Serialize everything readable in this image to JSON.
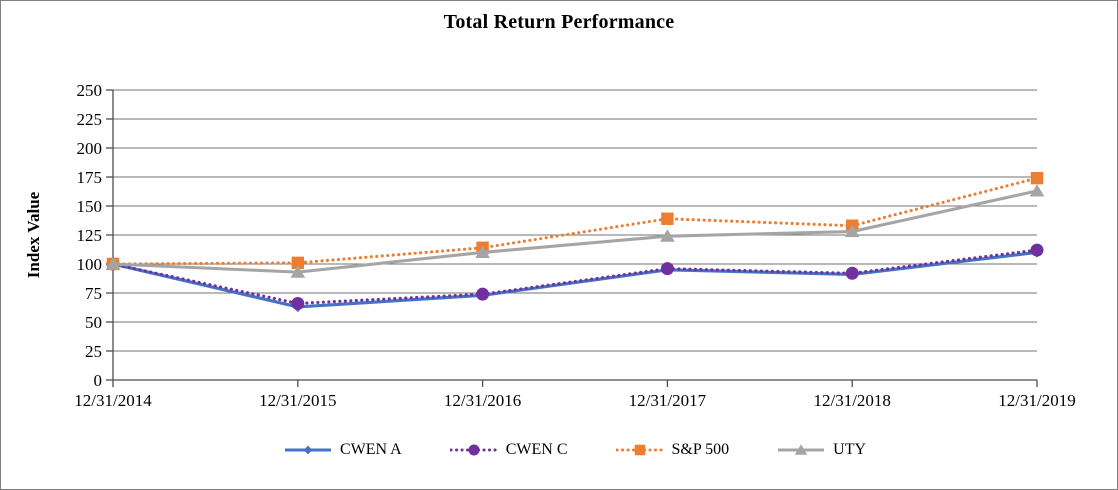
{
  "chart_data": {
    "type": "line",
    "title": "Total Return Performance",
    "ylabel": "Index Value",
    "xlabel": "",
    "categories": [
      "12/31/2014",
      "12/31/2015",
      "12/31/2016",
      "12/31/2017",
      "12/31/2018",
      "12/31/2019"
    ],
    "series": [
      {
        "name": "CWEN A",
        "color": "#4472C4",
        "line_style": "solid",
        "marker": "diamond",
        "values": [
          100,
          63,
          73,
          95,
          91,
          110
        ]
      },
      {
        "name": "CWEN C",
        "color": "#7030A0",
        "line_style": "dotted",
        "marker": "circle",
        "values": [
          100,
          66,
          74,
          96,
          92,
          112
        ]
      },
      {
        "name": "S&P 500",
        "color": "#ED7D31",
        "line_style": "dotted",
        "marker": "square",
        "values": [
          100,
          101,
          114,
          139,
          133,
          174
        ]
      },
      {
        "name": "UTY",
        "color": "#A5A5A5",
        "line_style": "solid",
        "marker": "triangle",
        "values": [
          100,
          93,
          110,
          124,
          128,
          163
        ]
      }
    ],
    "ylim": [
      0,
      250
    ],
    "yticks": [
      0,
      25,
      50,
      75,
      100,
      125,
      150,
      175,
      200,
      225,
      250
    ],
    "grid": "horizontal",
    "legend_position": "bottom",
    "colors": {
      "gridline": "#737373",
      "axis": "#4d4d4d",
      "text": "#000000"
    }
  }
}
